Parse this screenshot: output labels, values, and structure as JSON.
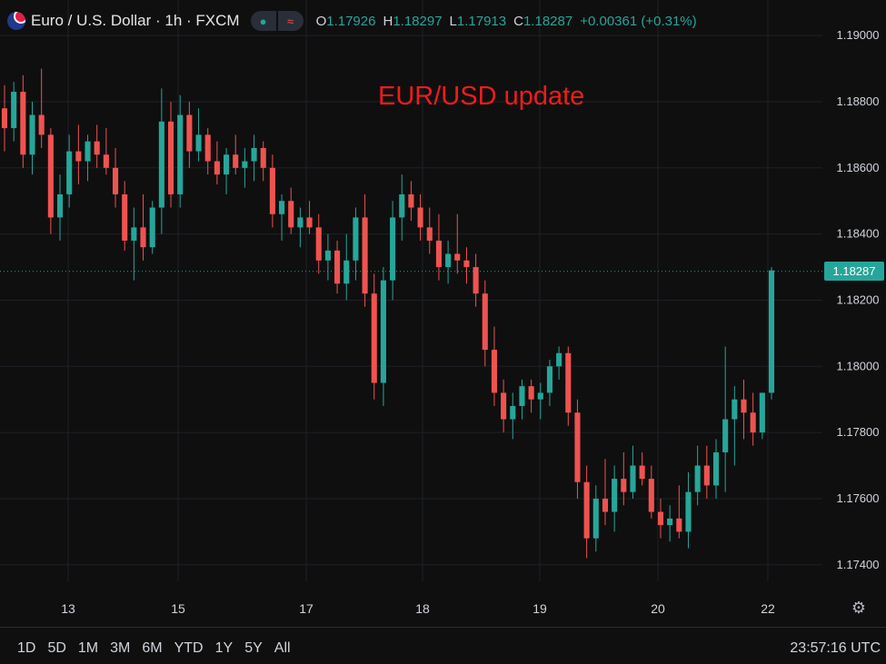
{
  "header": {
    "symbol": "Euro / U.S. Dollar · 1h · FXCM",
    "pill_left_icon": "circle-dot-icon",
    "pill_right_icon": "approx-icon",
    "ohlc": [
      {
        "key": "O",
        "value": "1.17926"
      },
      {
        "key": "H",
        "value": "1.18297"
      },
      {
        "key": "L",
        "value": "1.17913"
      },
      {
        "key": "C",
        "value": "1.18287"
      },
      {
        "key": "",
        "value": "+0.00361 (+0.31%)"
      }
    ],
    "up_color": "#26a69a",
    "down_color": "#ef5350"
  },
  "last_price_label": "1.18287",
  "footer": {
    "ranges": [
      "1D",
      "5D",
      "1M",
      "3M",
      "6M",
      "YTD",
      "1Y",
      "5Y",
      "All"
    ],
    "clock": "23:57:16 UTC",
    "settings_icon": "gear-icon"
  },
  "chart_data": {
    "type": "candlestick",
    "title": "EUR/USD update",
    "xlabel": "",
    "ylabel": "",
    "ylim": [
      1.1735,
      1.1908
    ],
    "y_ticks": [
      "1.17400",
      "1.17600",
      "1.17800",
      "1.18000",
      "1.18200",
      "1.18400",
      "1.18600",
      "1.18800",
      "1.19000"
    ],
    "x_ticks": [
      "13",
      "15",
      "17",
      "18",
      "19",
      "20",
      "22"
    ],
    "grid": true,
    "last_price": 1.18287,
    "series": [
      [
        1.1878,
        1.1885,
        1.1865,
        1.1872
      ],
      [
        1.1872,
        1.1886,
        1.1868,
        1.1883
      ],
      [
        1.1883,
        1.1888,
        1.186,
        1.1864
      ],
      [
        1.1864,
        1.188,
        1.1858,
        1.1876
      ],
      [
        1.1876,
        1.189,
        1.1866,
        1.187
      ],
      [
        1.187,
        1.1872,
        1.184,
        1.1845
      ],
      [
        1.1845,
        1.1858,
        1.1838,
        1.1852
      ],
      [
        1.1852,
        1.187,
        1.1848,
        1.1865
      ],
      [
        1.1865,
        1.1873,
        1.1855,
        1.1862
      ],
      [
        1.1862,
        1.187,
        1.1856,
        1.1868
      ],
      [
        1.1868,
        1.1873,
        1.186,
        1.1864
      ],
      [
        1.1864,
        1.1872,
        1.1858,
        1.186
      ],
      [
        1.186,
        1.1866,
        1.1848,
        1.1852
      ],
      [
        1.1852,
        1.1856,
        1.1835,
        1.1838
      ],
      [
        1.1838,
        1.1848,
        1.1826,
        1.1842
      ],
      [
        1.1842,
        1.1852,
        1.1832,
        1.1836
      ],
      [
        1.1836,
        1.185,
        1.1834,
        1.1848
      ],
      [
        1.1848,
        1.1884,
        1.184,
        1.1874
      ],
      [
        1.1874,
        1.188,
        1.1848,
        1.1852
      ],
      [
        1.1852,
        1.1882,
        1.1848,
        1.1876
      ],
      [
        1.1876,
        1.188,
        1.186,
        1.1865
      ],
      [
        1.1865,
        1.1878,
        1.1862,
        1.187
      ],
      [
        1.187,
        1.1872,
        1.1858,
        1.1862
      ],
      [
        1.1862,
        1.1868,
        1.1855,
        1.1858
      ],
      [
        1.1858,
        1.1866,
        1.1852,
        1.1864
      ],
      [
        1.1864,
        1.187,
        1.1858,
        1.186
      ],
      [
        1.186,
        1.1866,
        1.1854,
        1.1862
      ],
      [
        1.1862,
        1.187,
        1.1856,
        1.1866
      ],
      [
        1.1866,
        1.1868,
        1.1856,
        1.186
      ],
      [
        1.186,
        1.1864,
        1.1842,
        1.1846
      ],
      [
        1.1846,
        1.1852,
        1.1838,
        1.185
      ],
      [
        1.185,
        1.1854,
        1.184,
        1.1842
      ],
      [
        1.1842,
        1.1848,
        1.1836,
        1.1845
      ],
      [
        1.1845,
        1.185,
        1.184,
        1.1842
      ],
      [
        1.1842,
        1.1846,
        1.1828,
        1.1832
      ],
      [
        1.1832,
        1.184,
        1.1826,
        1.1835
      ],
      [
        1.1835,
        1.1838,
        1.1822,
        1.1825
      ],
      [
        1.1825,
        1.184,
        1.182,
        1.1832
      ],
      [
        1.1832,
        1.1848,
        1.1826,
        1.1845
      ],
      [
        1.1845,
        1.1852,
        1.1818,
        1.1822
      ],
      [
        1.1822,
        1.1828,
        1.179,
        1.1795
      ],
      [
        1.1795,
        1.183,
        1.1788,
        1.1826
      ],
      [
        1.1826,
        1.185,
        1.182,
        1.1845
      ],
      [
        1.1845,
        1.1858,
        1.1838,
        1.1852
      ],
      [
        1.1852,
        1.1856,
        1.1844,
        1.1848
      ],
      [
        1.1848,
        1.1852,
        1.1838,
        1.1842
      ],
      [
        1.1842,
        1.1848,
        1.1834,
        1.1838
      ],
      [
        1.1838,
        1.1846,
        1.1826,
        1.183
      ],
      [
        1.183,
        1.1838,
        1.1825,
        1.1834
      ],
      [
        1.1834,
        1.1846,
        1.1828,
        1.1832
      ],
      [
        1.1832,
        1.1836,
        1.1825,
        1.183
      ],
      [
        1.183,
        1.1834,
        1.1818,
        1.1822
      ],
      [
        1.1822,
        1.1826,
        1.18,
        1.1805
      ],
      [
        1.1805,
        1.1812,
        1.1788,
        1.1792
      ],
      [
        1.1792,
        1.1796,
        1.178,
        1.1784
      ],
      [
        1.1784,
        1.1792,
        1.1778,
        1.1788
      ],
      [
        1.1788,
        1.1796,
        1.1784,
        1.1794
      ],
      [
        1.1794,
        1.1796,
        1.1786,
        1.179
      ],
      [
        1.179,
        1.1795,
        1.1784,
        1.1792
      ],
      [
        1.1792,
        1.1802,
        1.1788,
        1.18
      ],
      [
        1.18,
        1.1806,
        1.1796,
        1.1804
      ],
      [
        1.1804,
        1.1806,
        1.1782,
        1.1786
      ],
      [
        1.1786,
        1.179,
        1.176,
        1.1765
      ],
      [
        1.1765,
        1.177,
        1.1742,
        1.1748
      ],
      [
        1.1748,
        1.1764,
        1.1744,
        1.176
      ],
      [
        1.176,
        1.1772,
        1.1752,
        1.1756
      ],
      [
        1.1756,
        1.177,
        1.175,
        1.1766
      ],
      [
        1.1766,
        1.1774,
        1.1758,
        1.1762
      ],
      [
        1.1762,
        1.1776,
        1.176,
        1.177
      ],
      [
        1.177,
        1.1774,
        1.1764,
        1.1766
      ],
      [
        1.1766,
        1.177,
        1.1754,
        1.1756
      ],
      [
        1.1756,
        1.176,
        1.1748,
        1.1752
      ],
      [
        1.1752,
        1.1758,
        1.1747,
        1.1754
      ],
      [
        1.1754,
        1.1764,
        1.1748,
        1.175
      ],
      [
        1.175,
        1.1768,
        1.1745,
        1.1762
      ],
      [
        1.1762,
        1.1776,
        1.1758,
        1.177
      ],
      [
        1.177,
        1.1776,
        1.176,
        1.1764
      ],
      [
        1.1764,
        1.1778,
        1.176,
        1.1774
      ],
      [
        1.1774,
        1.1806,
        1.1762,
        1.1784
      ],
      [
        1.1784,
        1.1794,
        1.177,
        1.179
      ],
      [
        1.179,
        1.1796,
        1.1778,
        1.1786
      ],
      [
        1.1786,
        1.1792,
        1.1776,
        1.178
      ],
      [
        1.178,
        1.1792,
        1.1778,
        1.1792
      ],
      [
        1.1792,
        1.183,
        1.179,
        1.1829
      ]
    ]
  }
}
